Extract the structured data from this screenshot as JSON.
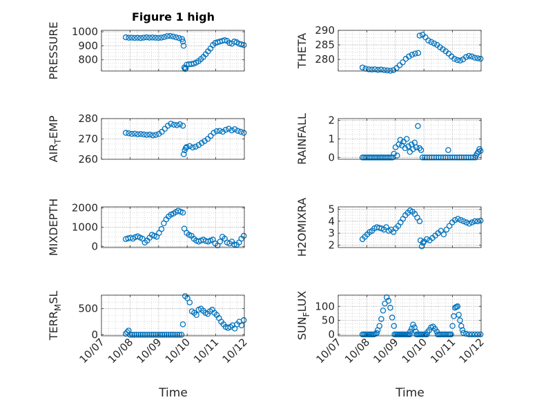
{
  "figure": {
    "title": "Figure 1 high",
    "marker_color": "#0072BD",
    "axis_color": "#262626",
    "grid_color": "#bfbfbf"
  },
  "chart_data": [
    {
      "type": "scatter",
      "id": "pressure",
      "ylabel": "PRESSURE",
      "ylim": [
        720,
        1010
      ],
      "yticks": [
        800,
        900,
        1000
      ],
      "ytick_labels": [
        "800",
        "900",
        "1000"
      ],
      "xlim": [
        0,
        5
      ],
      "xticks": [
        0,
        1,
        2,
        3,
        4,
        5
      ],
      "xtick_labels": [
        "10/07",
        "10/08",
        "10/09",
        "10/10",
        "10/11",
        "10/12"
      ],
      "show_xticklabels": false,
      "segments": [
        {
          "x0": 0.85,
          "x1": 2.82,
          "y": [
            960,
            957,
            958,
            956,
            957,
            955,
            958,
            960,
            958,
            959,
            957,
            956,
            958,
            962,
            968,
            970,
            966,
            960,
            955,
            948
          ]
        },
        {
          "x0": 2.85,
          "x1": 2.95,
          "y": [
            930,
            900,
            745,
            735,
            740
          ]
        },
        {
          "x0": 2.98,
          "x1": 4.98,
          "y": [
            765,
            768,
            770,
            773,
            780,
            790,
            805,
            820,
            840,
            860,
            880,
            905,
            920,
            925,
            930,
            935,
            940,
            935,
            920,
            915,
            930,
            925,
            915,
            910,
            905
          ]
        }
      ]
    },
    {
      "type": "scatter",
      "id": "theta",
      "ylabel": "THETA",
      "ylim": [
        276,
        290
      ],
      "yticks": [
        280,
        285,
        290
      ],
      "ytick_labels": [
        "280",
        "285",
        "290"
      ],
      "xlim": [
        0,
        5
      ],
      "xticks": [
        0,
        1,
        2,
        3,
        4,
        5
      ],
      "xtick_labels": [
        "10/07",
        "10/08",
        "10/09",
        "10/10",
        "10/11",
        "10/12"
      ],
      "show_xticklabels": false,
      "segments": [
        {
          "x0": 0.85,
          "x1": 2.8,
          "y": [
            277.2,
            276.8,
            276.6,
            276.5,
            276.6,
            276.4,
            276.5,
            276.3,
            276.2,
            276.1,
            276.3,
            277.0,
            278.0,
            279.0,
            280.2,
            281.0,
            281.6,
            282.0,
            282.2
          ]
        },
        {
          "x0": 2.85,
          "x1": 4.98,
          "y": [
            288.2,
            288.5,
            287.6,
            286.5,
            286.0,
            285.5,
            285.0,
            284.2,
            283.5,
            282.8,
            282.0,
            281.0,
            280.2,
            279.8,
            279.6,
            280.0,
            280.8,
            281.2,
            281.0,
            280.6,
            280.4,
            280.2
          ]
        }
      ]
    },
    {
      "type": "scatter",
      "id": "air_temp",
      "ylabel": "AIR",
      "ylabel_sub": "T",
      "ylabel_rest": "EMP",
      "ylim": [
        260,
        280
      ],
      "yticks": [
        260,
        270,
        280
      ],
      "ytick_labels": [
        "260",
        "270",
        "280"
      ],
      "xlim": [
        0,
        5
      ],
      "xticks": [
        0,
        1,
        2,
        3,
        4,
        5
      ],
      "xtick_labels": [
        "10/07",
        "10/08",
        "10/09",
        "10/10",
        "10/11",
        "10/12"
      ],
      "show_xticklabels": false,
      "segments": [
        {
          "x0": 0.85,
          "x1": 2.85,
          "y": [
            273.0,
            272.8,
            272.5,
            272.6,
            272.3,
            272.4,
            272.2,
            272.0,
            272.1,
            271.8,
            272.0,
            272.5,
            273.5,
            275.0,
            276.5,
            277.5,
            277.0,
            276.8,
            277.2,
            276.5
          ]
        },
        {
          "x0": 2.88,
          "x1": 2.95,
          "y": [
            262.5,
            264.5,
            265.5
          ]
        },
        {
          "x0": 2.98,
          "x1": 4.98,
          "y": [
            266.0,
            266.5,
            265.8,
            266.2,
            267.0,
            268.0,
            269.0,
            270.0,
            271.5,
            273.0,
            273.8,
            274.0,
            273.5,
            274.5,
            275.0,
            274.2,
            274.8,
            274.0,
            273.5,
            273.0
          ]
        }
      ]
    },
    {
      "type": "scatter",
      "id": "rainfall",
      "ylabel": "RAINFALL",
      "ylim": [
        -0.1,
        2.1
      ],
      "yticks": [
        0,
        1,
        2
      ],
      "ytick_labels": [
        "0",
        "1",
        "2"
      ],
      "xlim": [
        0,
        5
      ],
      "xticks": [
        0,
        1,
        2,
        3,
        4,
        5
      ],
      "xtick_labels": [
        "10/07",
        "10/08",
        "10/09",
        "10/10",
        "10/11",
        "10/12"
      ],
      "show_xticklabels": false,
      "segments": [
        {
          "x0": 0.85,
          "x1": 1.9,
          "y": [
            0,
            0,
            0,
            0,
            0,
            0,
            0,
            0,
            0,
            0,
            0,
            0,
            0,
            0,
            0,
            0,
            0,
            0,
            0,
            0
          ]
        },
        {
          "x0": 1.95,
          "x1": 2.9,
          "y": [
            0.2,
            0.55,
            0.1,
            0.7,
            0.95,
            0.65,
            0.85,
            0.5,
            1.0,
            0.6,
            0.3,
            0.7,
            0.45,
            0.8,
            0.55,
            1.7,
            0.5,
            0.4
          ]
        },
        {
          "x0": 2.95,
          "x1": 4.8,
          "y": [
            0,
            0,
            0,
            0,
            0,
            0,
            0,
            0,
            0,
            0,
            0,
            0,
            0,
            0,
            0,
            0,
            0,
            0,
            0,
            0,
            0,
            0,
            0,
            0
          ]
        },
        {
          "x0": 4.82,
          "x1": 4.98,
          "y": [
            0.1,
            0.2,
            0.3,
            0.45,
            0.35
          ]
        }
      ],
      "points": [
        {
          "x": 3.85,
          "y": 0.4
        }
      ]
    },
    {
      "type": "scatter",
      "id": "mixdepth",
      "ylabel": "MIXDEPTH",
      "ylim": [
        -60,
        2050
      ],
      "yticks": [
        0,
        1000,
        2000
      ],
      "ytick_labels": [
        "0",
        "1000",
        "2000"
      ],
      "xlim": [
        0,
        5
      ],
      "xticks": [
        0,
        1,
        2,
        3,
        4,
        5
      ],
      "xtick_labels": [
        "10/07",
        "10/08",
        "10/09",
        "10/10",
        "10/11",
        "10/12"
      ],
      "show_xticklabels": false,
      "segments": [
        {
          "x0": 0.85,
          "x1": 2.85,
          "y": [
            380,
            420,
            450,
            400,
            480,
            520,
            460,
            400,
            200,
            300,
            450,
            600,
            550,
            500,
            700,
            900,
            1200,
            1400,
            1550,
            1650,
            1700,
            1780,
            1850,
            1800,
            1750
          ]
        },
        {
          "x0": 2.9,
          "x1": 4.98,
          "y": [
            920,
            700,
            600,
            550,
            400,
            300,
            250,
            300,
            350,
            280,
            250,
            300,
            350,
            150,
            50,
            250,
            500,
            400,
            200,
            150,
            250,
            100,
            80,
            200,
            400,
            550
          ]
        }
      ]
    },
    {
      "type": "scatter",
      "id": "h2omixra",
      "ylabel": "H2OMIXRA",
      "ylim": [
        1.8,
        5.2
      ],
      "yticks": [
        2,
        3,
        4,
        5
      ],
      "ytick_labels": [
        "2",
        "3",
        "4",
        "5"
      ],
      "xlim": [
        0,
        5
      ],
      "xticks": [
        0,
        1,
        2,
        3,
        4,
        5
      ],
      "xtick_labels": [
        "10/07",
        "10/08",
        "10/09",
        "10/10",
        "10/11",
        "10/12"
      ],
      "show_xticklabels": false,
      "segments": [
        {
          "x0": 0.85,
          "x1": 2.85,
          "y": [
            2.5,
            2.7,
            2.9,
            3.1,
            3.2,
            3.4,
            3.5,
            3.45,
            3.4,
            3.3,
            3.5,
            3.2,
            3.3,
            3.1,
            3.4,
            3.6,
            3.9,
            4.2,
            4.5,
            4.7,
            4.9,
            4.8,
            4.6,
            4.3,
            4.0
          ]
        },
        {
          "x0": 2.88,
          "x1": 2.97,
          "y": [
            2.4,
            1.9,
            2.2
          ]
        },
        {
          "x0": 3.0,
          "x1": 4.98,
          "y": [
            2.3,
            2.5,
            2.4,
            2.6,
            2.8,
            3.0,
            3.2,
            2.9,
            3.3,
            3.6,
            3.9,
            4.1,
            4.2,
            4.1,
            4.0,
            3.9,
            3.8,
            3.9,
            4.0,
            4.0,
            4.05
          ]
        }
      ]
    },
    {
      "type": "scatter",
      "id": "terr_msl",
      "ylabel": "TERR",
      "ylabel_sub": "M",
      "ylabel_rest": "SL",
      "ylim": [
        -20,
        760
      ],
      "yticks": [
        0,
        500
      ],
      "ytick_labels": [
        "0",
        "500"
      ],
      "xlim": [
        0,
        5
      ],
      "xticks": [
        0,
        1,
        2,
        3,
        4,
        5
      ],
      "xtick_labels": [
        "10/07",
        "10/08",
        "10/09",
        "10/10",
        "10/11",
        "10/12"
      ],
      "show_xticklabels": true,
      "segments": [
        {
          "x0": 0.85,
          "x1": 0.95,
          "y": [
            20,
            50,
            80
          ]
        },
        {
          "x0": 1.0,
          "x1": 2.8,
          "y": [
            0,
            0,
            0,
            0,
            0,
            0,
            0,
            0,
            0,
            0,
            0,
            0,
            0,
            0,
            0,
            0,
            0,
            0,
            0,
            0,
            0,
            0,
            0,
            0,
            0
          ]
        },
        {
          "x0": 2.85,
          "x1": 4.98,
          "y": [
            200,
            740,
            700,
            620,
            450,
            420,
            380,
            480,
            500,
            460,
            420,
            400,
            450,
            480,
            420,
            380,
            320,
            250,
            200,
            150,
            130,
            150,
            180,
            120,
            200,
            250,
            180,
            280
          ]
        }
      ]
    },
    {
      "type": "scatter",
      "id": "sun_flux",
      "ylabel": "SUN",
      "ylabel_sub": "F",
      "ylabel_rest": "LUX",
      "ylim": [
        -5,
        140
      ],
      "yticks": [
        0,
        50,
        100
      ],
      "ytick_labels": [
        "0",
        "50",
        "100"
      ],
      "xlim": [
        0,
        5
      ],
      "xticks": [
        0,
        1,
        2,
        3,
        4,
        5
      ],
      "xtick_labels": [
        "10/07",
        "10/08",
        "10/09",
        "10/10",
        "10/11",
        "10/12"
      ],
      "show_xticklabels": true,
      "segments": [
        {
          "x0": 0.85,
          "x1": 1.35,
          "y": [
            0,
            0,
            0,
            0,
            0,
            0,
            0,
            0,
            0,
            2,
            5
          ]
        },
        {
          "x0": 1.38,
          "x1": 1.95,
          "y": [
            15,
            30,
            55,
            85,
            110,
            132,
            120,
            95,
            60,
            30
          ]
        },
        {
          "x0": 1.97,
          "x1": 2.5,
          "y": [
            0,
            0,
            0,
            0,
            0,
            0,
            0,
            0,
            0,
            0,
            0,
            0
          ]
        },
        {
          "x0": 2.52,
          "x1": 2.72,
          "y": [
            10,
            20,
            35,
            25,
            10
          ]
        },
        {
          "x0": 2.74,
          "x1": 3.1,
          "y": [
            0,
            0,
            0,
            0,
            0,
            0,
            0,
            0
          ]
        },
        {
          "x0": 3.12,
          "x1": 3.45,
          "y": [
            8,
            15,
            25,
            28,
            20,
            10
          ]
        },
        {
          "x0": 3.48,
          "x1": 3.95,
          "y": [
            0,
            0,
            0,
            0,
            0,
            0,
            0,
            0,
            0,
            0
          ]
        },
        {
          "x0": 4.0,
          "x1": 4.35,
          "y": [
            30,
            65,
            95,
            98,
            100,
            70,
            50,
            30,
            15
          ]
        },
        {
          "x0": 4.38,
          "x1": 4.98,
          "y": [
            5,
            2,
            0,
            0,
            0,
            0,
            0
          ]
        }
      ]
    }
  ],
  "xlabel": "Time"
}
